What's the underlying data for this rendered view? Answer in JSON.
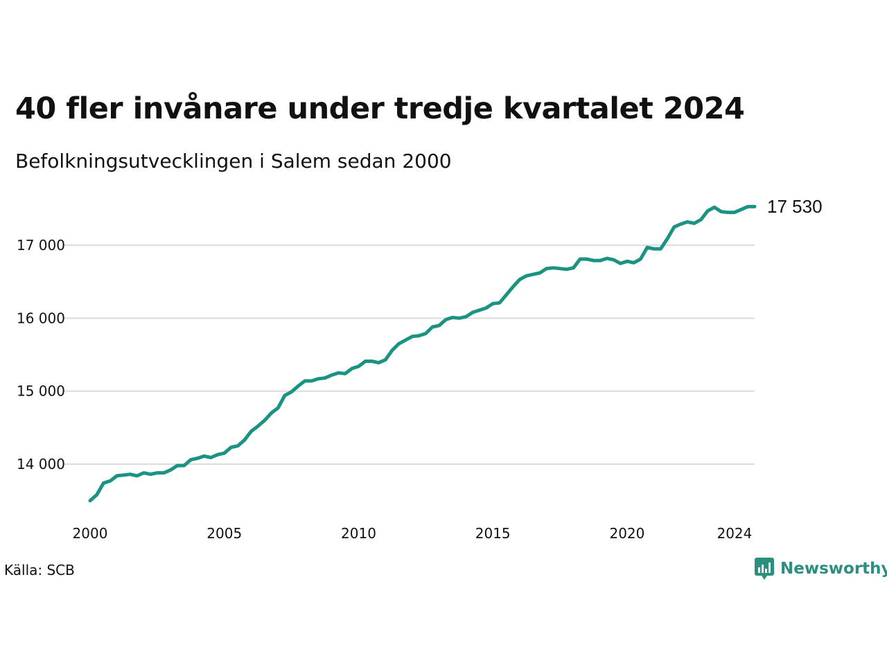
{
  "title": "40 fler invånare under tredje kvartalet 2024",
  "subtitle": "Befolkningsutvecklingen i Salem sedan 2000",
  "source": "Källa: SCB",
  "brand": {
    "name": "Newsworthy",
    "icon": "newsworthy-logo-icon",
    "color": "#2a8f7f"
  },
  "chart_data": {
    "type": "line",
    "title": "40 fler invånare under tredje kvartalet 2024",
    "subtitle": "Befolkningsutvecklingen i Salem sedan 2000",
    "xlim": [
      2000,
      2024.75
    ],
    "ylim": [
      13500,
      17600
    ],
    "yticks": [
      14000,
      15000,
      16000,
      17000
    ],
    "ytick_labels": [
      "14 000",
      "15 000",
      "16 000",
      "17 000"
    ],
    "xticks": [
      2000,
      2005,
      2010,
      2015,
      2020,
      2024
    ],
    "xtick_labels": [
      "2000",
      "2005",
      "2010",
      "2015",
      "2020",
      "2024"
    ],
    "grid": "horizontal",
    "line_color": "#1a9382",
    "end_label": "17 530",
    "series": [
      {
        "x": [
          2000.0,
          2000.25,
          2000.5,
          2000.75,
          2001.0,
          2001.25,
          2001.5,
          2001.75,
          2002.0,
          2002.25,
          2002.5,
          2002.75,
          2003.0,
          2003.25,
          2003.5,
          2003.75,
          2004.0,
          2004.25,
          2004.5,
          2004.75,
          2005.0,
          2005.25,
          2005.5,
          2005.75,
          2006.0,
          2006.25,
          2006.5,
          2006.75,
          2007.0,
          2007.25,
          2007.5,
          2007.75,
          2008.0,
          2008.25,
          2008.5,
          2008.75,
          2009.0,
          2009.25,
          2009.5,
          2009.75,
          2010.0,
          2010.25,
          2010.5,
          2010.75,
          2011.0,
          2011.25,
          2011.5,
          2011.75,
          2012.0,
          2012.25,
          2012.5,
          2012.75,
          2013.0,
          2013.25,
          2013.5,
          2013.75,
          2014.0,
          2014.25,
          2014.5,
          2014.75,
          2015.0,
          2015.25,
          2015.5,
          2015.75,
          2016.0,
          2016.25,
          2016.5,
          2016.75,
          2017.0,
          2017.25,
          2017.5,
          2017.75,
          2018.0,
          2018.25,
          2018.5,
          2018.75,
          2019.0,
          2019.25,
          2019.5,
          2019.75,
          2020.0,
          2020.25,
          2020.5,
          2020.75,
          2021.0,
          2021.25,
          2021.5,
          2021.75,
          2022.0,
          2022.25,
          2022.5,
          2022.75,
          2023.0,
          2023.25,
          2023.5,
          2023.75,
          2024.0,
          2024.25,
          2024.5,
          2024.75
        ],
        "values": [
          13500,
          13580,
          13740,
          13770,
          13840,
          13850,
          13860,
          13840,
          13880,
          13860,
          13880,
          13880,
          13920,
          13980,
          13980,
          14060,
          14080,
          14110,
          14090,
          14130,
          14150,
          14230,
          14250,
          14330,
          14450,
          14520,
          14600,
          14700,
          14770,
          14940,
          14990,
          15070,
          15140,
          15140,
          15170,
          15180,
          15220,
          15250,
          15240,
          15310,
          15340,
          15410,
          15410,
          15390,
          15430,
          15560,
          15650,
          15700,
          15750,
          15760,
          15790,
          15880,
          15900,
          15980,
          16010,
          16000,
          16020,
          16080,
          16110,
          16140,
          16200,
          16210,
          16320,
          16430,
          16530,
          16580,
          16600,
          16620,
          16680,
          16690,
          16680,
          16670,
          16690,
          16810,
          16810,
          16790,
          16790,
          16820,
          16800,
          16750,
          16780,
          16760,
          16810,
          16970,
          16950,
          16950,
          17090,
          17250,
          17290,
          17320,
          17300,
          17350,
          17470,
          17520,
          17460,
          17450,
          17450,
          17490,
          17530,
          17530
        ]
      }
    ]
  }
}
